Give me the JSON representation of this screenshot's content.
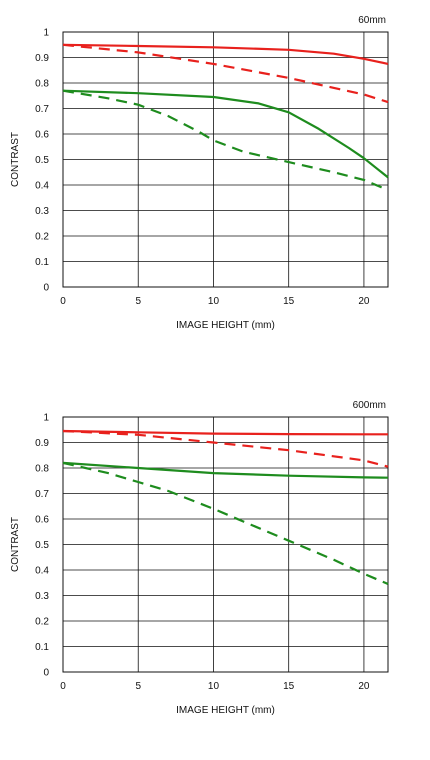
{
  "chart_data": [
    {
      "type": "line",
      "title": "60mm",
      "xlabel": "IMAGE HEIGHT (mm)",
      "ylabel": "CONTRAST",
      "xlim": [
        0,
        21.6
      ],
      "ylim": [
        0,
        1
      ],
      "x_ticks": [
        "0",
        "5",
        "10",
        "15",
        "20"
      ],
      "y_ticks": [
        "0",
        "0.1",
        "0.2",
        "0.3",
        "0.4",
        "0.5",
        "0.6",
        "0.7",
        "0.8",
        "0.9",
        "1"
      ],
      "grid": true,
      "colors": {
        "red": "#e8211d",
        "green": "#1e8c1e",
        "grid": "#111111"
      },
      "series": [
        {
          "color": "red",
          "style": "solid",
          "x": [
            0,
            5,
            10,
            15,
            18,
            20,
            21.6
          ],
          "y": [
            0.95,
            0.945,
            0.94,
            0.93,
            0.915,
            0.895,
            0.875
          ]
        },
        {
          "color": "red",
          "style": "dashed",
          "x": [
            0,
            5,
            10,
            15,
            20,
            21.6
          ],
          "y": [
            0.95,
            0.92,
            0.875,
            0.82,
            0.755,
            0.725
          ]
        },
        {
          "color": "green",
          "style": "solid",
          "x": [
            0,
            5,
            10,
            13,
            15,
            17,
            19,
            20,
            21.6
          ],
          "y": [
            0.77,
            0.76,
            0.745,
            0.72,
            0.685,
            0.62,
            0.545,
            0.505,
            0.43
          ]
        },
        {
          "color": "green",
          "style": "dashed",
          "x": [
            0,
            3,
            5,
            7,
            9,
            10,
            12,
            15,
            18,
            20,
            21.6
          ],
          "y": [
            0.77,
            0.74,
            0.715,
            0.67,
            0.61,
            0.575,
            0.53,
            0.49,
            0.45,
            0.42,
            0.38
          ]
        }
      ]
    },
    {
      "type": "line",
      "title": "600mm",
      "xlabel": "IMAGE HEIGHT (mm)",
      "ylabel": "CONTRAST",
      "xlim": [
        0,
        21.6
      ],
      "ylim": [
        0,
        1
      ],
      "x_ticks": [
        "0",
        "5",
        "10",
        "15",
        "20"
      ],
      "y_ticks": [
        "0",
        "0.1",
        "0.2",
        "0.3",
        "0.4",
        "0.5",
        "0.6",
        "0.7",
        "0.8",
        "0.9",
        "1"
      ],
      "grid": true,
      "colors": {
        "red": "#e8211d",
        "green": "#1e8c1e",
        "grid": "#111111"
      },
      "series": [
        {
          "color": "red",
          "style": "solid",
          "x": [
            0,
            5,
            10,
            15,
            20,
            21.6
          ],
          "y": [
            0.945,
            0.94,
            0.935,
            0.933,
            0.932,
            0.932
          ]
        },
        {
          "color": "red",
          "style": "dashed",
          "x": [
            0,
            5,
            10,
            15,
            20,
            21.6
          ],
          "y": [
            0.945,
            0.93,
            0.9,
            0.87,
            0.83,
            0.805
          ]
        },
        {
          "color": "green",
          "style": "solid",
          "x": [
            0,
            5,
            10,
            15,
            20,
            21.6
          ],
          "y": [
            0.82,
            0.8,
            0.78,
            0.77,
            0.763,
            0.762
          ]
        },
        {
          "color": "green",
          "style": "dashed",
          "x": [
            0,
            3,
            5,
            7,
            10,
            12,
            15,
            18,
            20,
            21.6
          ],
          "y": [
            0.82,
            0.78,
            0.745,
            0.71,
            0.64,
            0.59,
            0.515,
            0.44,
            0.385,
            0.345
          ]
        }
      ]
    }
  ]
}
